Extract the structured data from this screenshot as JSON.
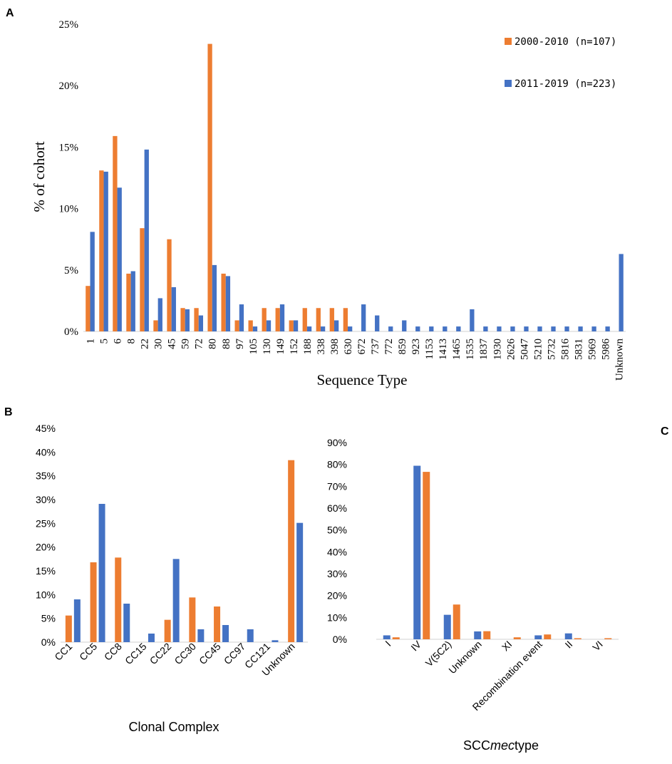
{
  "colors": {
    "orange": "#ED7D31",
    "blue": "#4472C4"
  },
  "panels": {
    "a": "A",
    "b": "B",
    "c": "C"
  },
  "chart_data": [
    {
      "id": "A",
      "type": "bar",
      "title": "",
      "xlabel": "Sequence Type",
      "ylabel": "% of cohort",
      "ylim": [
        0,
        25
      ],
      "yticks": [
        "0%",
        "5%",
        "10%",
        "15%",
        "20%",
        "25%"
      ],
      "legend_position": "top-right",
      "categories": [
        "1",
        "5",
        "6",
        "8",
        "22",
        "30",
        "45",
        "59",
        "72",
        "80",
        "88",
        "97",
        "105",
        "130",
        "149",
        "152",
        "188",
        "338",
        "398",
        "630",
        "672",
        "737",
        "772",
        "859",
        "923",
        "1153",
        "1413",
        "1465",
        "1535",
        "1837",
        "1930",
        "2626",
        "5047",
        "5210",
        "5732",
        "5816",
        "5831",
        "5969",
        "5986",
        "Unknown"
      ],
      "series": [
        {
          "name": "2000-2010 (n=107)",
          "color": "orange",
          "values": [
            3.7,
            13.1,
            15.9,
            4.7,
            8.4,
            0.9,
            7.5,
            1.9,
            1.9,
            23.4,
            4.7,
            0.9,
            0.9,
            1.9,
            1.9,
            0.9,
            1.9,
            1.9,
            1.9,
            1.9,
            0,
            0,
            0,
            0,
            0,
            0,
            0,
            0,
            0,
            0,
            0,
            0,
            0,
            0,
            0,
            0,
            0,
            0,
            0,
            0
          ]
        },
        {
          "name": "2011-2019 (n=223)",
          "color": "blue",
          "values": [
            8.1,
            13.0,
            11.7,
            4.9,
            14.8,
            2.7,
            3.6,
            1.8,
            1.3,
            5.4,
            4.5,
            2.2,
            0.4,
            0.9,
            2.2,
            0.9,
            0.4,
            0.4,
            0.9,
            0.4,
            2.2,
            1.3,
            0.4,
            0.9,
            0.4,
            0.4,
            0.4,
            0.4,
            1.8,
            0.4,
            0.4,
            0.4,
            0.4,
            0.4,
            0.4,
            0.4,
            0.4,
            0.4,
            0.4,
            6.3
          ]
        }
      ]
    },
    {
      "id": "B",
      "type": "bar",
      "title": "",
      "xlabel": "Clonal Complex",
      "ylabel": "",
      "ylim": [
        0,
        45
      ],
      "yticks": [
        "0%",
        "5%",
        "10%",
        "15%",
        "20%",
        "25%",
        "30%",
        "35%",
        "40%",
        "45%"
      ],
      "categories": [
        "CC1",
        "CC5",
        "CC8",
        "CC15",
        "CC22",
        "CC30",
        "CC45",
        "CC97",
        "CC121",
        "Unknown"
      ],
      "series": [
        {
          "name": "2000-2010 (n=107)",
          "color": "orange",
          "values": [
            5.6,
            16.8,
            17.8,
            0,
            4.7,
            9.4,
            7.5,
            0,
            0,
            38.3
          ]
        },
        {
          "name": "2011-2019 (n=223)",
          "color": "blue",
          "values": [
            9.0,
            29.1,
            8.1,
            1.8,
            17.5,
            2.7,
            3.6,
            2.7,
            0.4,
            25.1
          ]
        }
      ]
    },
    {
      "id": "C",
      "type": "bar",
      "title": "",
      "xlabel_prefix": "SCC",
      "xlabel_italic": "mec",
      "xlabel_suffix": "type",
      "ylabel": "",
      "ylim": [
        0,
        90
      ],
      "yticks": [
        "0%",
        "10%",
        "20%",
        "30%",
        "40%",
        "50%",
        "60%",
        "70%",
        "80%",
        "90%"
      ],
      "categories": [
        "I",
        "IV",
        "V(5C2)",
        "Unknown",
        "XI",
        "Recombination event",
        "II",
        "VI"
      ],
      "series": [
        {
          "name": "2011-2019 (n=223)",
          "color": "blue",
          "values": [
            1.8,
            79.4,
            11.2,
            3.6,
            0,
            1.8,
            2.7,
            0
          ]
        },
        {
          "name": "2000-2010 (n=107)",
          "color": "orange",
          "values": [
            0.9,
            76.6,
            15.9,
            3.7,
            0.9,
            2.2,
            0.5,
            0.5
          ]
        }
      ]
    }
  ]
}
